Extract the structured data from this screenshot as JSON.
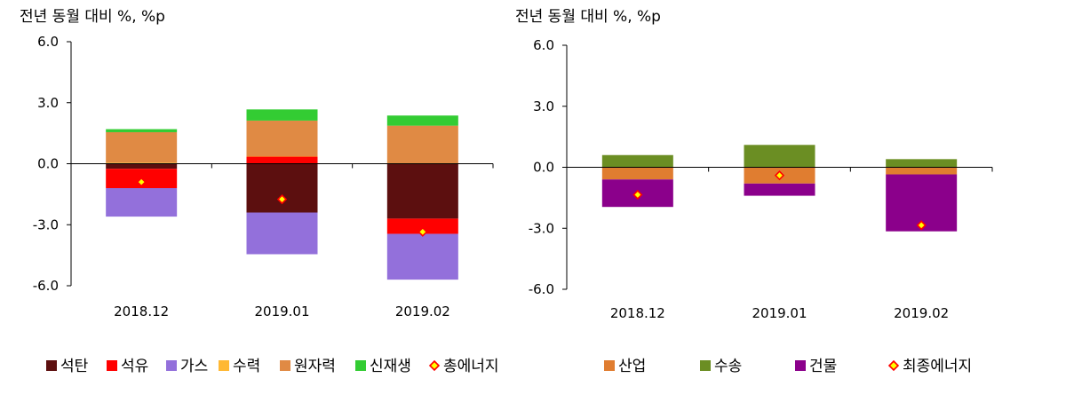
{
  "chart_data": [
    {
      "type": "bar",
      "stacked": true,
      "unit_label": "전년 동월 대비 %, %p",
      "categories": [
        "2018.12",
        "2019.01",
        "2019.02"
      ],
      "yticks": [
        "6.0",
        "3.0",
        "0.0",
        "-3.0",
        "-6.0"
      ],
      "ylim": [
        -6,
        6
      ],
      "series": [
        {
          "name": "석탄",
          "color": "#5C0F0F",
          "values": [
            -0.25,
            -2.4,
            -2.7
          ]
        },
        {
          "name": "석유",
          "color": "#FF0000",
          "values": [
            -0.95,
            0.35,
            -0.75
          ]
        },
        {
          "name": "가스",
          "color": "#9370DB",
          "values": [
            -1.4,
            -2.05,
            -2.25
          ]
        },
        {
          "name": "수력",
          "color": "#FFB833",
          "values": [
            0.05,
            0.02,
            0.02
          ]
        },
        {
          "name": "원자력",
          "color": "#E08A44",
          "values": [
            1.5,
            1.75,
            1.85
          ]
        },
        {
          "name": "신재생",
          "color": "#33CC33",
          "values": [
            0.15,
            0.55,
            0.5
          ]
        }
      ],
      "total": {
        "name": "총에너지",
        "values": [
          -0.9,
          -1.75,
          -3.35
        ]
      },
      "legend_position": "bottom"
    },
    {
      "type": "bar",
      "stacked": true,
      "unit_label": "전년 동월 대비 %, %p",
      "categories": [
        "2018.12",
        "2019.01",
        "2019.02"
      ],
      "yticks": [
        "6.0",
        "3.0",
        "0.0",
        "-3.0",
        "-6.0"
      ],
      "ylim": [
        -6,
        6
      ],
      "series": [
        {
          "name": "산업",
          "color": "#E07D30",
          "values": [
            -0.6,
            -0.8,
            -0.35
          ]
        },
        {
          "name": "수송",
          "color": "#6B8E23",
          "values": [
            0.6,
            1.1,
            0.4
          ]
        },
        {
          "name": "건물",
          "color": "#8B008B",
          "values": [
            -1.35,
            -0.6,
            -2.8
          ]
        }
      ],
      "total": {
        "name": "최종에너지",
        "values": [
          -1.35,
          -0.4,
          -2.85
        ]
      },
      "legend_position": "bottom"
    }
  ],
  "colors": {
    "axis": "#000000",
    "marker_fill": "#FFFF00",
    "marker_stroke": "#FF0000"
  }
}
